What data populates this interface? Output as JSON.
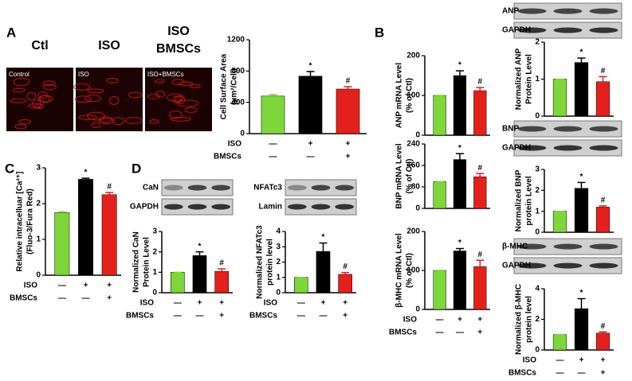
{
  "panels": [
    "A",
    "B",
    "C",
    "D"
  ],
  "micrographs": {
    "headers": [
      "Ctl",
      "ISO",
      "ISO",
      "BMSCs"
    ],
    "captions": [
      "Control",
      "ISO",
      "ISO+BMSCs"
    ]
  },
  "blots": [
    {
      "labels": [
        "ANP",
        "GAPDH"
      ]
    },
    {
      "labels": [
        "BNP",
        "GAPDH"
      ]
    },
    {
      "labels": [
        "β-MHC",
        "GAPDH"
      ]
    },
    {
      "labels": [
        "CaN",
        "GAPDH"
      ]
    },
    {
      "labels": [
        "NFATc3",
        "Lamin"
      ]
    }
  ],
  "chart_data": [
    {
      "type": "bar",
      "ylabel": [
        "Cell Surface Area",
        "(μm²/Cell)"
      ],
      "ylim": [
        0,
        1200
      ],
      "yticks": [
        0,
        400,
        800,
        1200
      ],
      "values": [
        480,
        735,
        570
      ],
      "errors": [
        20,
        60,
        30
      ],
      "colors": [
        "#7ed63a",
        "#000000",
        "#e3201b"
      ],
      "annotations": [
        null,
        "*",
        "#"
      ],
      "treatments": [
        {
          "name": "ISO",
          "signs": [
            "—",
            "+",
            "+"
          ]
        },
        {
          "name": "BMSCs",
          "signs": [
            "—",
            "—",
            "+"
          ]
        }
      ]
    },
    {
      "type": "bar",
      "ylabel": [
        "ANP mRNA Level",
        "(% of Ctl)"
      ],
      "ylim": [
        0,
        200
      ],
      "yticks": [
        0,
        100,
        200
      ],
      "values": [
        100,
        150,
        112
      ],
      "errors": [
        0,
        12,
        8
      ],
      "colors": [
        "#7ed63a",
        "#000000",
        "#e3201b"
      ],
      "annotations": [
        null,
        "*",
        "#"
      ]
    },
    {
      "type": "bar",
      "ylabel": [
        "BNP mRNA Level",
        "(% of Ctl)"
      ],
      "ylim": [
        0,
        240
      ],
      "yticks": [
        0,
        80,
        160,
        240
      ],
      "values": [
        100,
        182,
        118
      ],
      "errors": [
        0,
        22,
        12
      ],
      "colors": [
        "#7ed63a",
        "#000000",
        "#e3201b"
      ],
      "annotations": [
        null,
        "*",
        "#"
      ]
    },
    {
      "type": "bar",
      "ylabel": [
        "β-MHC mRNA Level",
        "(% of Ctl)"
      ],
      "ylim": [
        0,
        200
      ],
      "yticks": [
        0,
        100,
        200
      ],
      "values": [
        100,
        150,
        110
      ],
      "errors": [
        0,
        6,
        16
      ],
      "colors": [
        "#7ed63a",
        "#000000",
        "#e3201b"
      ],
      "annotations": [
        null,
        "*",
        "#"
      ],
      "treatments": [
        {
          "name": "ISO",
          "signs": [
            "—",
            "+",
            "+"
          ]
        },
        {
          "name": "BMSCs",
          "signs": [
            "—",
            "—",
            "+"
          ]
        }
      ]
    },
    {
      "type": "bar",
      "ylabel": [
        "Normalized ANP",
        "Protein Level"
      ],
      "ylim": [
        0,
        2
      ],
      "yticks": [
        0,
        1,
        2
      ],
      "values": [
        1,
        1.45,
        0.93
      ],
      "errors": [
        0,
        0.12,
        0.14
      ],
      "colors": [
        "#7ed63a",
        "#000000",
        "#e3201b"
      ],
      "annotations": [
        null,
        "*",
        "#"
      ]
    },
    {
      "type": "bar",
      "ylabel": [
        "Normalized BNP",
        "protein Level"
      ],
      "ylim": [
        0,
        3
      ],
      "yticks": [
        0,
        1,
        2,
        3
      ],
      "values": [
        1,
        2.1,
        1.2
      ],
      "errors": [
        0,
        0.28,
        0.06
      ],
      "colors": [
        "#7ed63a",
        "#000000",
        "#e3201b"
      ],
      "annotations": [
        null,
        "*",
        "#"
      ]
    },
    {
      "type": "bar",
      "ylabel": [
        "Normalized β-MHC",
        "protein level"
      ],
      "ylim": [
        0,
        4
      ],
      "yticks": [
        0,
        2,
        4
      ],
      "values": [
        1,
        2.7,
        1.1
      ],
      "errors": [
        0,
        0.65,
        0.08
      ],
      "colors": [
        "#7ed63a",
        "#000000",
        "#e3201b"
      ],
      "annotations": [
        null,
        "*",
        "#"
      ],
      "treatments": [
        {
          "name": "ISO",
          "signs": [
            "—",
            "+",
            "+"
          ]
        },
        {
          "name": "BMSCs",
          "signs": [
            "—",
            "—",
            "+"
          ]
        }
      ]
    },
    {
      "type": "bar",
      "ylabel": [
        "Relative intracelluar [Ca²⁺]",
        "(Fluo-3/Fura Red)"
      ],
      "ylim": [
        0,
        3
      ],
      "yticks": [
        0,
        1,
        2,
        3
      ],
      "values": [
        1.75,
        2.68,
        2.25
      ],
      "errors": [
        0.02,
        0.03,
        0.06
      ],
      "colors": [
        "#7ed63a",
        "#000000",
        "#e3201b"
      ],
      "annotations": [
        null,
        "*",
        "#"
      ],
      "treatments": [
        {
          "name": "ISO",
          "signs": [
            "—",
            "+",
            "+"
          ]
        },
        {
          "name": "BMSCs",
          "signs": [
            "—",
            "—",
            "+"
          ]
        }
      ]
    },
    {
      "type": "bar",
      "ylabel": [
        "Normalized CaN",
        "Protein Level"
      ],
      "ylim": [
        0,
        3
      ],
      "yticks": [
        0,
        1,
        2,
        3
      ],
      "values": [
        1,
        1.82,
        1.05
      ],
      "errors": [
        0,
        0.18,
        0.12
      ],
      "colors": [
        "#7ed63a",
        "#000000",
        "#e3201b"
      ],
      "annotations": [
        null,
        "*",
        "#"
      ],
      "treatments": [
        {
          "name": "ISO",
          "signs": [
            "—",
            "+",
            "+"
          ]
        },
        {
          "name": "BMSCs",
          "signs": [
            "—",
            "—",
            "+"
          ]
        }
      ]
    },
    {
      "type": "bar",
      "ylabel": [
        "Normalized NFATc3",
        "protein level"
      ],
      "ylim": [
        0,
        4
      ],
      "yticks": [
        0,
        1,
        2,
        3,
        4
      ],
      "values": [
        1,
        2.7,
        1.2
      ],
      "errors": [
        0,
        0.55,
        0.12
      ],
      "colors": [
        "#7ed63a",
        "#000000",
        "#e3201b"
      ],
      "annotations": [
        null,
        "*",
        "#"
      ],
      "treatments": [
        {
          "name": "ISO",
          "signs": [
            "—",
            "+",
            "+"
          ]
        },
        {
          "name": "BMSCs",
          "signs": [
            "—",
            "—",
            "+"
          ]
        }
      ]
    }
  ]
}
